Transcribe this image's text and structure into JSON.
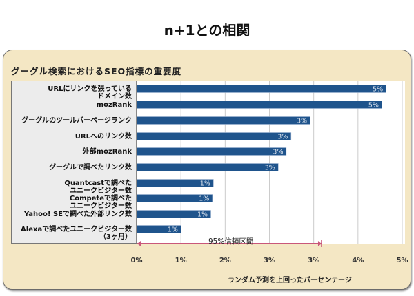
{
  "page_title": "n+1との相関",
  "chart_data": {
    "type": "bar",
    "orientation": "horizontal",
    "title": "グーグル検索におけるSEO指標の重要度",
    "xlabel": "ランダム予測を上回ったパーセンテージ",
    "ylabel": "",
    "xlim": [
      0,
      5
    ],
    "x_tick_labels": [
      "0%",
      "1%",
      "2%",
      "3%",
      "3%",
      "4%",
      "5%"
    ],
    "grid": true,
    "bar_color": "#1f548c",
    "categories": [
      "URLにリンクを張っている\nドメイン数",
      "mozRank",
      "グーグルのツールバーページランク",
      "URLへのリンク数",
      "外部mozRank",
      "グーグルで調べたリンク数",
      "Quantcastで調べた\nユニークビジター数",
      "Competeで調べた\nユニークビジター数",
      "Yahoo! SEで調べた外部リンク数",
      "Alexaで調べたユニークビジター数\n（3ヶ月）"
    ],
    "values": [
      4.69,
      4.61,
      3.26,
      2.9,
      2.81,
      2.66,
      1.44,
      1.42,
      1.39,
      0.83
    ],
    "data_labels": [
      "5%",
      "5%",
      "3%",
      "3%",
      "3%",
      "3%",
      "1%",
      "1%",
      "1%",
      "1%"
    ],
    "annotation": {
      "label": "95%信頼区間",
      "range": [
        0,
        3.48
      ],
      "color": "#c9577a"
    }
  }
}
